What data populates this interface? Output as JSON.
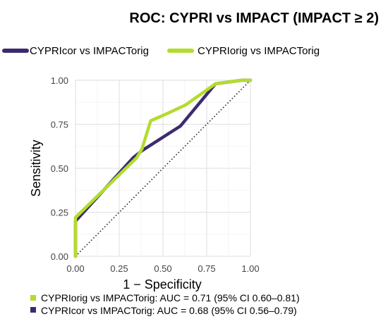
{
  "chart_data": {
    "type": "line",
    "title": "ROC: CYPRI vs IMPACT (IMPACT ≥ 2)",
    "xlabel": "1 − Specificity",
    "ylabel": "Sensitivity",
    "xlim": [
      0,
      1
    ],
    "ylim": [
      0,
      1
    ],
    "xticks": [
      "0.00",
      "0.25",
      "0.50",
      "0.75",
      "1.00"
    ],
    "yticks": [
      "0.00",
      "0.25",
      "0.50",
      "0.75",
      "1.00"
    ],
    "grid": true,
    "legend_position": "top",
    "diagonal_reference": true,
    "series": [
      {
        "name": "CYPRIcor vs IMPACTorig",
        "color": "#3d2a6e",
        "x": [
          0,
          0,
          0.33,
          0.38,
          0.6,
          0.8,
          0.95,
          1.0
        ],
        "y": [
          0,
          0.2,
          0.56,
          0.6,
          0.74,
          0.98,
          1.0,
          1.0
        ]
      },
      {
        "name": "CYPRIorig vs IMPACTorig",
        "color": "#b3dc2d",
        "x": [
          0,
          0,
          0.35,
          0.38,
          0.43,
          0.5,
          0.63,
          0.8,
          0.95,
          1.0
        ],
        "y": [
          0,
          0.22,
          0.56,
          0.61,
          0.77,
          0.8,
          0.86,
          0.98,
          1.0,
          1.0
        ]
      }
    ],
    "auc_annotations": [
      {
        "text": "CYPRIorig vs IMPACTorig: AUC = 0.71 (95% CI 0.60–0.81)",
        "color": "#b3dc2d"
      },
      {
        "text": "CYPRIcor vs IMPACTorig: AUC = 0.68 (95% CI 0.56–0.79)",
        "color": "#3d2a6e"
      }
    ]
  }
}
